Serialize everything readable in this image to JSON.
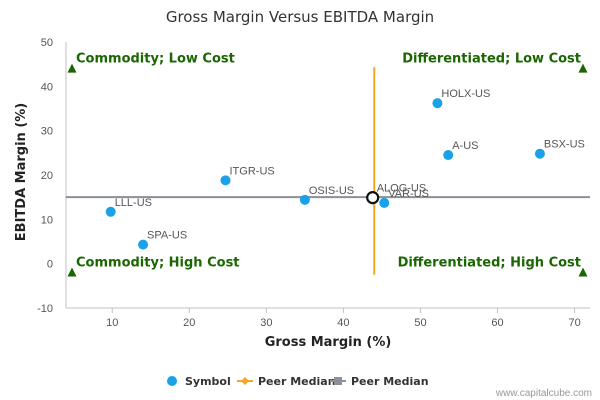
{
  "chart_data": {
    "type": "scatter",
    "title": "Gross Margin Versus EBITDA Margin",
    "xlabel": "Gross Margin (%)",
    "ylabel": "EBITDA Margin (%)",
    "xlim": [
      4,
      72
    ],
    "ylim": [
      -10,
      50
    ],
    "x_ticks": [
      10,
      20,
      30,
      40,
      50,
      60,
      70
    ],
    "y_ticks": [
      -10,
      0,
      10,
      20,
      30,
      40,
      50
    ],
    "grid": false,
    "series": [
      {
        "name": "Symbol",
        "color": "#1aa1e8",
        "points": [
          {
            "label": "HOLX-US",
            "x": 52.2,
            "y": 36.2
          },
          {
            "label": "A-US",
            "x": 53.6,
            "y": 24.5
          },
          {
            "label": "BSX-US",
            "x": 65.5,
            "y": 24.8
          },
          {
            "label": "ITGR-US",
            "x": 24.7,
            "y": 18.8
          },
          {
            "label": "OSIS-US",
            "x": 35.0,
            "y": 14.4
          },
          {
            "label": "ALOG-US",
            "x": 43.8,
            "y": 14.9,
            "highlight": true
          },
          {
            "label": "VAR-US",
            "x": 45.3,
            "y": 13.7
          },
          {
            "label": "LLL-US",
            "x": 9.8,
            "y": 11.7
          },
          {
            "label": "SPA-US",
            "x": 14.0,
            "y": 4.3
          }
        ]
      },
      {
        "name": "Peer Median",
        "color": "#f5a623",
        "orientation": "vertical",
        "x": 44.0,
        "y_range": [
          -2.5,
          44.3
        ]
      },
      {
        "name": "Peer Median",
        "color": "#8a8f98",
        "orientation": "horizontal",
        "y": 15.0,
        "x_range": [
          4,
          72
        ]
      }
    ],
    "quadrant_labels": [
      {
        "text": "Commodity; Low Cost",
        "corner": "top-left"
      },
      {
        "text": "Differentiated; Low Cost",
        "corner": "top-right"
      },
      {
        "text": "Commodity; High Cost",
        "corner": "bottom-left"
      },
      {
        "text": "Differentiated; High Cost",
        "corner": "bottom-right"
      }
    ],
    "legend_position": "bottom-center",
    "quadrant_color": "#1a6600"
  },
  "credit": "www.capitalcube.com"
}
